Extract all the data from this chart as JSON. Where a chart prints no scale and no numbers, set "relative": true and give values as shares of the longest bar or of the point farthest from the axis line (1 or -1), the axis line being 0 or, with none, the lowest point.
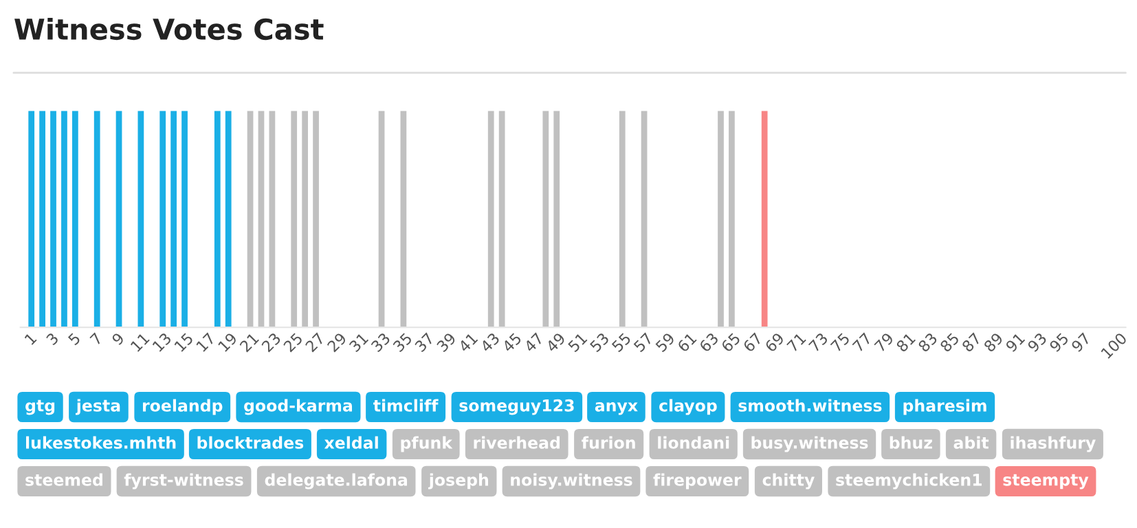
{
  "chart_data": {
    "type": "bar",
    "title": "Witness Votes Cast",
    "relative": true,
    "categories": [
      "1",
      null,
      "3",
      null,
      "5",
      null,
      "7",
      null,
      "9",
      null,
      "11",
      null,
      "13",
      null,
      "15",
      null,
      "17",
      null,
      "19",
      null,
      "21",
      null,
      "23",
      null,
      "25",
      null,
      "27",
      null,
      "29",
      null,
      "31",
      null,
      "33",
      null,
      "35",
      null,
      "37",
      null,
      "39",
      null,
      "41",
      null,
      "43",
      null,
      "45",
      null,
      "47",
      null,
      "49",
      null,
      "51",
      null,
      "53",
      null,
      "55",
      null,
      "57",
      null,
      "59",
      null,
      "61",
      null,
      "63",
      null,
      "65",
      null,
      "67",
      null,
      "69",
      null,
      "71",
      null,
      "73",
      null,
      "75",
      null,
      "77",
      null,
      "79",
      null,
      "81",
      null,
      "83",
      null,
      "85",
      null,
      "87",
      null,
      "89",
      null,
      "91",
      null,
      "93",
      null,
      "95",
      null,
      "97",
      null,
      null,
      "100"
    ],
    "series": [
      {
        "color": "#1aafe6",
        "values": [
          1,
          1,
          1,
          1,
          1,
          null,
          1,
          null,
          1,
          null,
          1,
          null,
          1,
          1,
          1,
          null,
          null,
          1,
          1,
          null,
          null,
          null,
          null,
          null,
          null,
          null,
          null,
          null,
          null,
          null,
          null,
          null,
          null,
          null,
          null,
          null,
          null,
          null,
          null,
          null,
          null,
          null,
          null,
          null,
          null,
          null,
          null,
          null,
          null,
          null,
          null,
          null,
          null,
          null,
          null,
          null,
          null,
          null,
          null,
          null,
          null,
          null,
          null,
          null,
          null,
          null,
          null,
          null,
          null,
          null,
          null,
          null,
          null,
          null,
          null,
          null,
          null,
          null,
          null,
          null,
          null,
          null,
          null,
          null,
          null,
          null,
          null,
          null,
          null,
          null,
          null,
          null,
          null,
          null,
          null,
          null,
          null,
          null,
          null,
          null
        ]
      },
      {
        "color": "#c0c0c0",
        "values": [
          null,
          null,
          null,
          null,
          null,
          null,
          null,
          null,
          null,
          null,
          null,
          null,
          null,
          null,
          null,
          null,
          null,
          null,
          null,
          null,
          1,
          1,
          1,
          null,
          1,
          1,
          1,
          null,
          null,
          null,
          null,
          null,
          1,
          null,
          1,
          null,
          null,
          null,
          null,
          null,
          null,
          null,
          1,
          1,
          null,
          null,
          null,
          1,
          1,
          null,
          null,
          null,
          null,
          null,
          1,
          null,
          1,
          null,
          null,
          null,
          null,
          null,
          null,
          1,
          1,
          null,
          null,
          null,
          null,
          null,
          null,
          null,
          null,
          null,
          null,
          null,
          null,
          null,
          null,
          null,
          null,
          null,
          null,
          null,
          null,
          null,
          null,
          null,
          null,
          null,
          null,
          null,
          null,
          null,
          null,
          null,
          null,
          null,
          null,
          null
        ]
      },
      {
        "color": "#f78585",
        "values": [
          null,
          null,
          null,
          null,
          null,
          null,
          null,
          null,
          null,
          null,
          null,
          null,
          null,
          null,
          null,
          null,
          null,
          null,
          null,
          null,
          null,
          null,
          null,
          null,
          null,
          null,
          null,
          null,
          null,
          null,
          null,
          null,
          null,
          null,
          null,
          null,
          null,
          null,
          null,
          null,
          null,
          null,
          null,
          null,
          null,
          null,
          null,
          null,
          null,
          null,
          null,
          null,
          null,
          null,
          null,
          null,
          null,
          null,
          null,
          null,
          null,
          null,
          null,
          null,
          null,
          null,
          null,
          1,
          null,
          null,
          null,
          null,
          null,
          null,
          null,
          null,
          null,
          null,
          null,
          null,
          null,
          null,
          null,
          null,
          null,
          null,
          null,
          null,
          null,
          null,
          null,
          null,
          null,
          null,
          null,
          null,
          null,
          null,
          null,
          null
        ]
      }
    ],
    "annotations": [
      "gtg",
      "jesta",
      "roelandp",
      "good-karma",
      "timcliff",
      "someguy123",
      "anyx",
      "clayop",
      "smooth.witness",
      "pharesim",
      "lukestokes.mhth",
      "blocktrades",
      "xeldal",
      "pfunk",
      "riverhead",
      "furion",
      "liondani",
      "busy.witness",
      "bhuz",
      "abit",
      "ihashfury",
      "steemed",
      "fyrst-witness",
      "delegate.lafona",
      "joseph",
      "noisy.witness",
      "firepower",
      "chitty",
      "steemychicken1",
      "steempty"
    ],
    "grid": false,
    "legend": false
  }
}
